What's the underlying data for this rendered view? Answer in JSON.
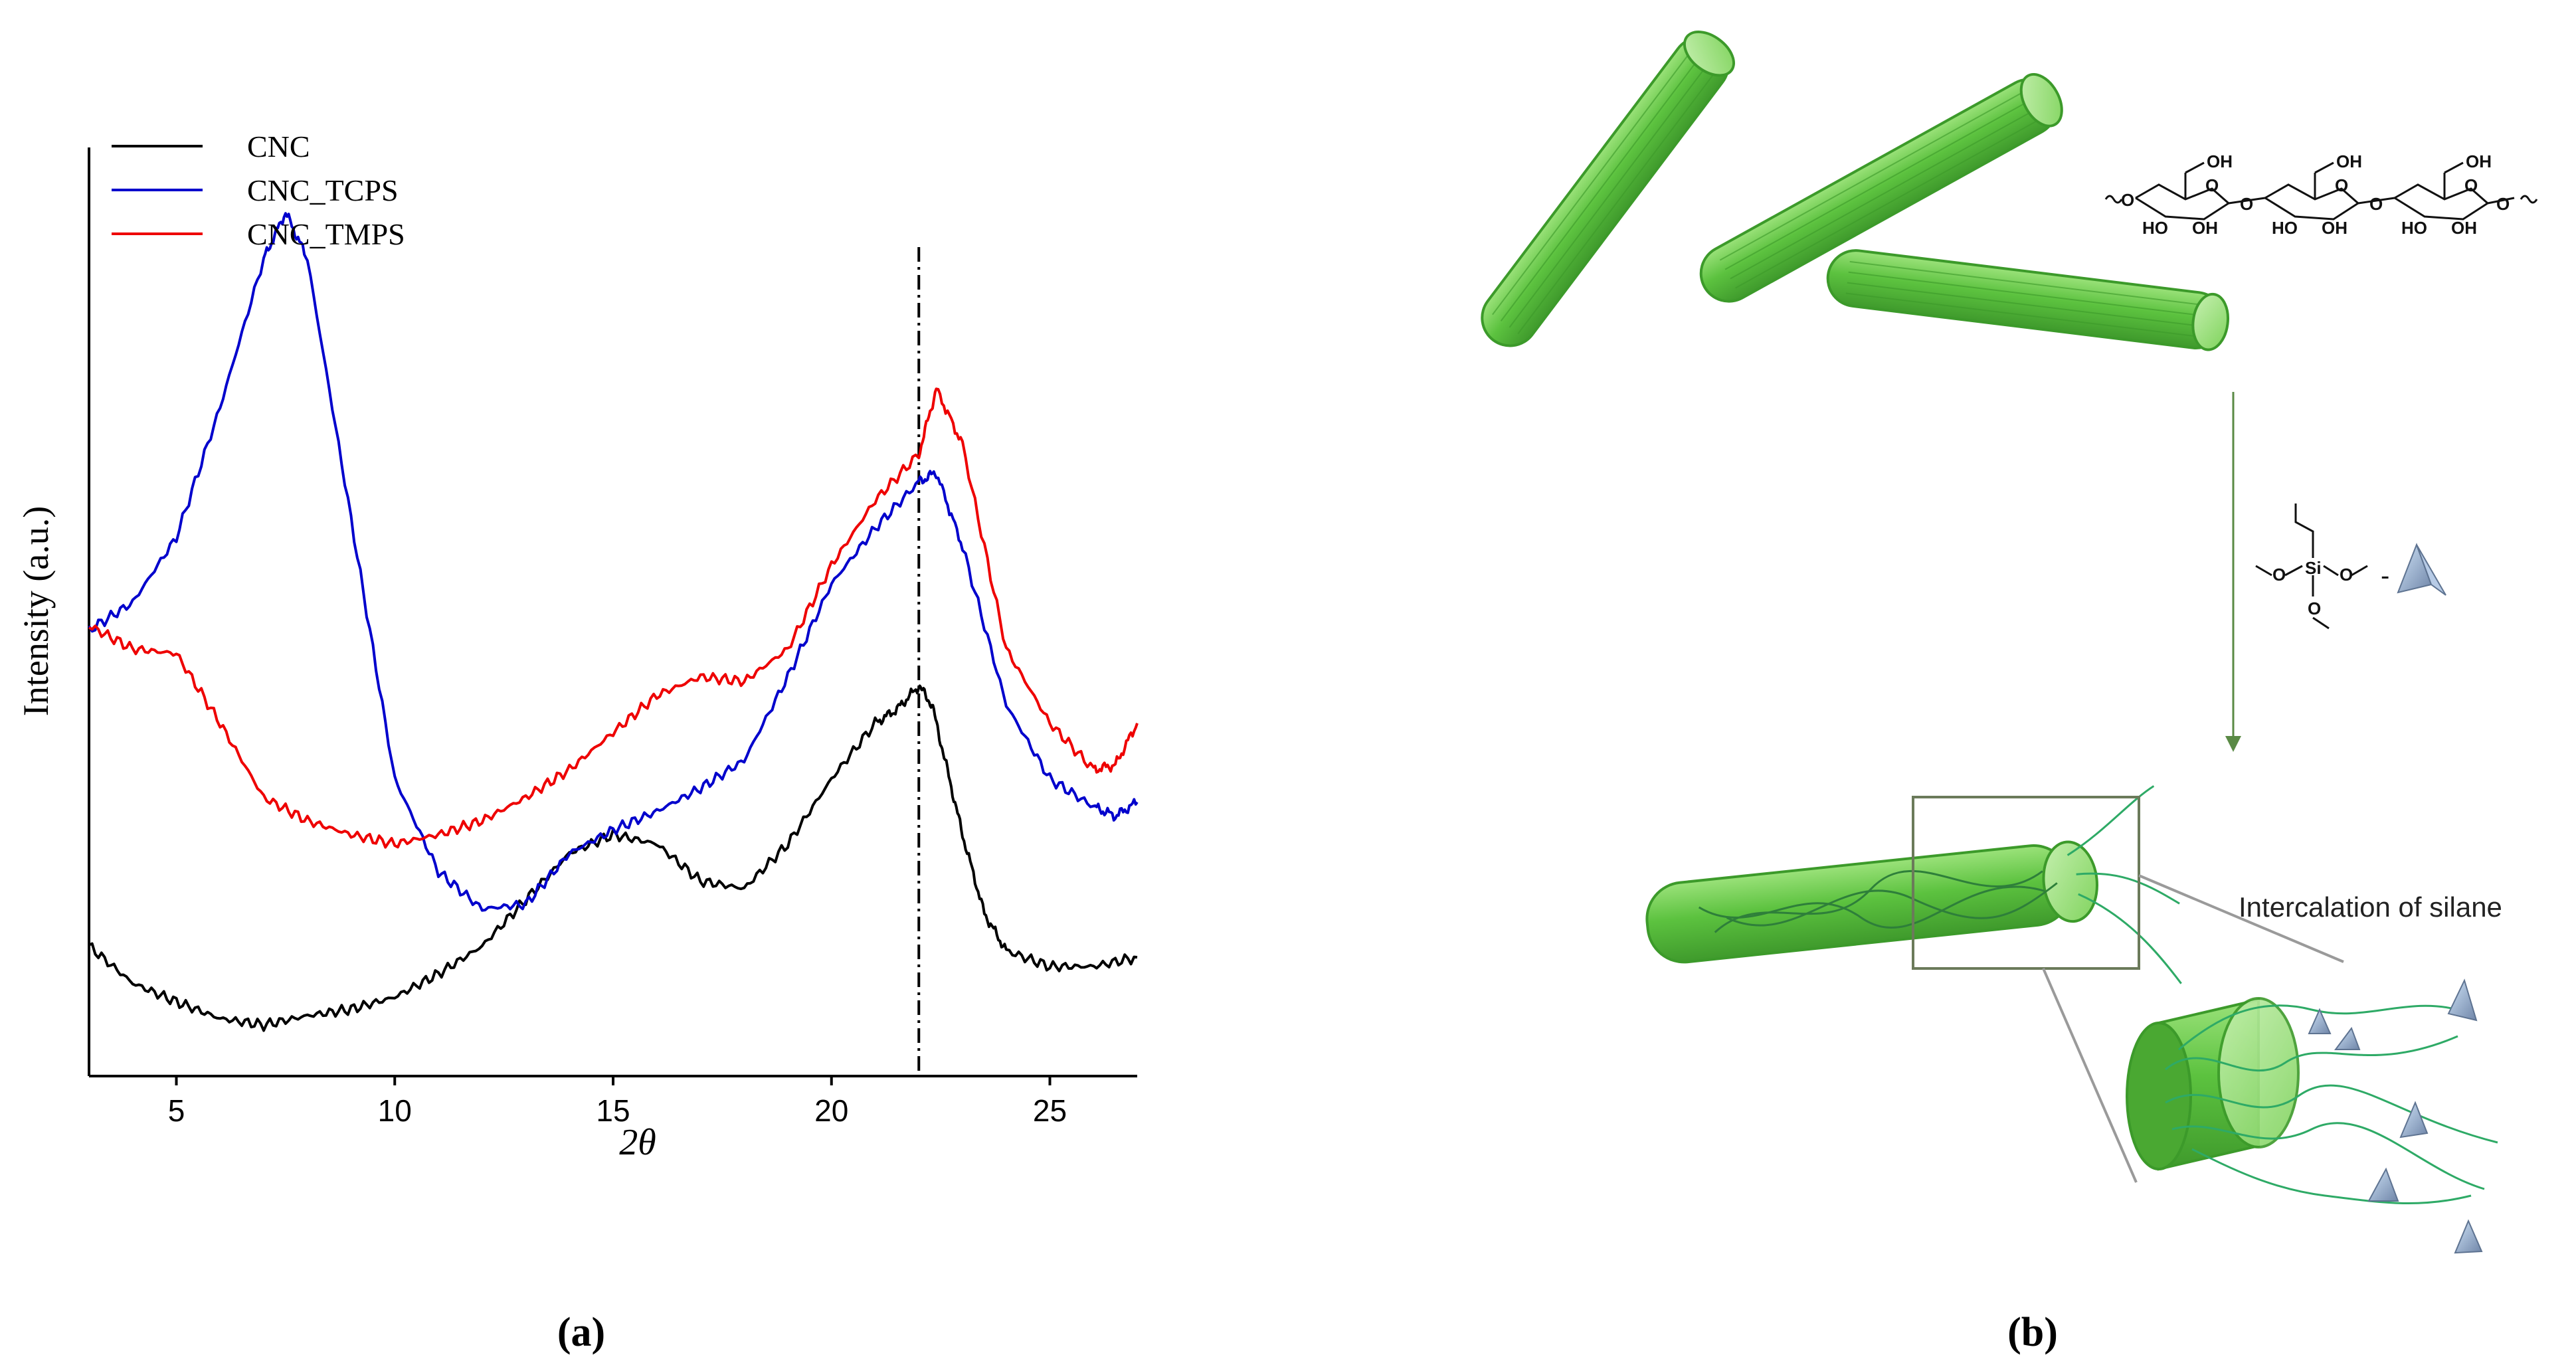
{
  "chart_data": {
    "type": "line",
    "xlabel": "2θ",
    "ylabel": "Intensity (a.u.)",
    "xlim": [
      3,
      27
    ],
    "ylim": [
      0,
      100
    ],
    "xticks": [
      5,
      10,
      15,
      20,
      25
    ],
    "grid": false,
    "legend_position": "top-left",
    "reference_line_x": 22,
    "series": [
      {
        "name": "CNC",
        "color": "#000000",
        "points": [
          [
            3,
            14
          ],
          [
            4,
            10
          ],
          [
            5,
            8
          ],
          [
            6,
            6.2
          ],
          [
            7,
            5.5
          ],
          [
            8,
            6.5
          ],
          [
            9,
            7.2
          ],
          [
            10,
            8.5
          ],
          [
            11,
            11
          ],
          [
            12,
            14
          ],
          [
            13,
            19
          ],
          [
            14,
            24
          ],
          [
            15,
            26
          ],
          [
            16,
            25
          ],
          [
            17,
            21
          ],
          [
            18,
            20.2
          ],
          [
            19,
            25
          ],
          [
            20,
            32
          ],
          [
            21,
            38
          ],
          [
            21.5,
            39.5
          ],
          [
            22,
            42
          ],
          [
            22.3,
            40
          ],
          [
            22.6,
            34
          ],
          [
            23,
            26
          ],
          [
            23.5,
            17.5
          ],
          [
            24,
            13.5
          ],
          [
            25,
            11.8
          ],
          [
            26,
            11.8
          ],
          [
            27,
            12.8
          ]
        ]
      },
      {
        "name": "CNC_TCPS",
        "color": "#0000cc",
        "points": [
          [
            3,
            48
          ],
          [
            4,
            51
          ],
          [
            5,
            58
          ],
          [
            6,
            72
          ],
          [
            7,
            88
          ],
          [
            7.5,
            93
          ],
          [
            8,
            88
          ],
          [
            9,
            60
          ],
          [
            10,
            32
          ],
          [
            11,
            22
          ],
          [
            12,
            18
          ],
          [
            13,
            18.5
          ],
          [
            14,
            24
          ],
          [
            15,
            26.5
          ],
          [
            16,
            28.5
          ],
          [
            17,
            31
          ],
          [
            18,
            34
          ],
          [
            19,
            43
          ],
          [
            20,
            53
          ],
          [
            21,
            59
          ],
          [
            22,
            64
          ],
          [
            22.4,
            65
          ],
          [
            23,
            57
          ],
          [
            24,
            40
          ],
          [
            25,
            32
          ],
          [
            26,
            29
          ],
          [
            26.5,
            28
          ],
          [
            27,
            29.5
          ]
        ]
      },
      {
        "name": "CNC_TMPS",
        "color": "#ee0000",
        "points": [
          [
            3,
            48.5
          ],
          [
            4,
            46
          ],
          [
            5,
            45.5
          ],
          [
            6,
            38
          ],
          [
            7,
            30
          ],
          [
            8,
            27.5
          ],
          [
            9,
            26
          ],
          [
            10,
            25
          ],
          [
            11,
            26
          ],
          [
            12,
            27.5
          ],
          [
            13,
            30
          ],
          [
            14,
            33
          ],
          [
            15,
            37
          ],
          [
            16,
            41
          ],
          [
            17,
            43
          ],
          [
            18,
            42.5
          ],
          [
            19,
            46
          ],
          [
            20,
            55
          ],
          [
            21,
            62
          ],
          [
            22,
            67
          ],
          [
            22.4,
            74
          ],
          [
            23,
            68
          ],
          [
            24,
            46
          ],
          [
            25,
            38
          ],
          [
            26,
            33
          ],
          [
            26.5,
            33.5
          ],
          [
            27,
            38
          ]
        ]
      }
    ]
  },
  "panel_labels": {
    "a": "(a)",
    "b": "(b)"
  },
  "diagram": {
    "annotation": "Intercalation of silane",
    "cellulose_groups": {
      "oh_top_1": "OH",
      "oh_top_2": "OH",
      "oh_top_3": "OH",
      "ho_bottom_1": "HO",
      "oh_bottom_1": "OH",
      "ho_bottom_2": "HO",
      "oh_bottom_2": "OH",
      "ho_bottom_3": "HO",
      "oh_bottom_3": "OH",
      "o_ring_1": "O",
      "o_ring_2": "O",
      "o_ring_3": "O",
      "o_link_0": "O",
      "o_link_1": "O",
      "o_link_2": "O",
      "o_link_3": "O"
    },
    "silane_groups": {
      "si": "Si",
      "o_left": "O",
      "o_right": "O",
      "o_bottom": "O"
    },
    "colors": {
      "rod_fill": "#5cc23f",
      "rod_stroke": "#3c9a2a",
      "arrow": "#5a8a45",
      "zoom_frame": "#6b7a5a",
      "zoom_line": "#9a9a9a",
      "fiber": "#2eaa66",
      "pyramid": "#8ca3c4"
    }
  }
}
